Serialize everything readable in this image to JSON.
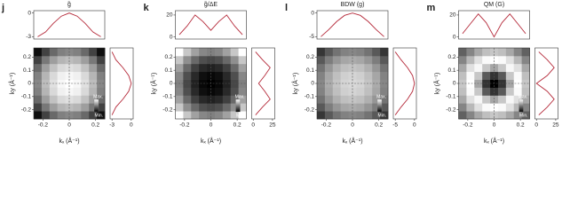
{
  "chart_data": [
    {
      "type": "heatmap",
      "label": "j",
      "title": "g̃",
      "xlabel": "kₓ (Å⁻¹)",
      "ylabel": "ky (Å⁻¹)",
      "x": [
        -0.24,
        -0.18,
        -0.12,
        -0.06,
        0,
        0.06,
        0.12,
        0.18,
        0.24
      ],
      "y": [
        -0.24,
        -0.18,
        -0.12,
        -0.06,
        0,
        0.06,
        0.12,
        0.18,
        0.24
      ],
      "z": [
        [
          0.06,
          0.26,
          0.41,
          0.5,
          0.53,
          0.5,
          0.41,
          0.26,
          0.06
        ],
        [
          0.26,
          0.47,
          0.62,
          0.71,
          0.74,
          0.71,
          0.62,
          0.47,
          0.26
        ],
        [
          0.41,
          0.62,
          0.76,
          0.85,
          0.88,
          0.85,
          0.76,
          0.62,
          0.41
        ],
        [
          0.5,
          0.71,
          0.85,
          0.94,
          0.97,
          0.94,
          0.85,
          0.71,
          0.5
        ],
        [
          0.53,
          0.74,
          0.88,
          0.97,
          1,
          0.97,
          0.88,
          0.74,
          0.53
        ],
        [
          0.5,
          0.71,
          0.85,
          0.94,
          0.97,
          0.94,
          0.85,
          0.71,
          0.5
        ],
        [
          0.41,
          0.62,
          0.76,
          0.85,
          0.88,
          0.85,
          0.76,
          0.62,
          0.41
        ],
        [
          0.26,
          0.47,
          0.62,
          0.71,
          0.74,
          0.71,
          0.62,
          0.47,
          0.26
        ],
        [
          0.06,
          0.26,
          0.41,
          0.5,
          0.53,
          0.5,
          0.41,
          0.26,
          0.06
        ]
      ],
      "xlim": [
        -0.27,
        0.27
      ],
      "ylim": [
        -0.27,
        0.27
      ],
      "xticks": [
        -0.2,
        0,
        0.2
      ],
      "yticks": [
        0.2,
        0.1,
        0,
        -0.1,
        -0.2
      ],
      "colorbar": {
        "max": "Max.",
        "min": "Min."
      },
      "top": {
        "values": [
          -3,
          -2.4,
          -1.3,
          -0.4,
          0,
          -0.4,
          -1.3,
          -2.4,
          -3
        ],
        "ylim": [
          -3.3,
          0.3
        ],
        "yticks": [
          0,
          -3
        ],
        "color": "#b52a3a"
      },
      "side": {
        "values": [
          -3,
          -2.4,
          -1.3,
          -0.4,
          0,
          -0.4,
          -1.3,
          -2.4,
          -3
        ],
        "xlim": [
          -3.3,
          0.3
        ],
        "xticks": [
          -3,
          0
        ],
        "color": "#b52a3a"
      }
    },
    {
      "type": "heatmap",
      "label": "k",
      "title": "g̃/ΔE",
      "xlabel": "kₓ (Å⁻¹)",
      "ylabel": "ky (Å⁻¹)",
      "x": [
        -0.24,
        -0.18,
        -0.12,
        -0.06,
        0,
        0.06,
        0.12,
        0.18,
        0.24
      ],
      "y": [
        -0.24,
        -0.18,
        -0.12,
        -0.06,
        0,
        0.06,
        0.12,
        0.18,
        0.24
      ],
      "z": [
        [
          1,
          0.78,
          0.63,
          0.53,
          0.5,
          0.53,
          0.63,
          0.78,
          1
        ],
        [
          0.78,
          0.56,
          0.41,
          0.31,
          0.28,
          0.31,
          0.41,
          0.56,
          0.78
        ],
        [
          0.63,
          0.41,
          0.25,
          0.16,
          0.13,
          0.16,
          0.25,
          0.41,
          0.63
        ],
        [
          0.53,
          0.31,
          0.16,
          0.06,
          0.03,
          0.06,
          0.16,
          0.31,
          0.53
        ],
        [
          0.5,
          0.28,
          0.13,
          0.03,
          0,
          0.03,
          0.13,
          0.28,
          0.5
        ],
        [
          0.53,
          0.31,
          0.16,
          0.06,
          0.03,
          0.06,
          0.16,
          0.31,
          0.53
        ],
        [
          0.63,
          0.41,
          0.25,
          0.16,
          0.13,
          0.16,
          0.25,
          0.41,
          0.63
        ],
        [
          0.78,
          0.56,
          0.41,
          0.31,
          0.28,
          0.31,
          0.41,
          0.56,
          0.78
        ],
        [
          1,
          0.78,
          0.63,
          0.53,
          0.5,
          0.53,
          0.63,
          0.78,
          1
        ]
      ],
      "xlim": [
        -0.27,
        0.27
      ],
      "ylim": [
        -0.27,
        0.27
      ],
      "xticks": [
        -0.2,
        0,
        0.2
      ],
      "yticks": [
        0.2,
        0.1,
        0,
        -0.1,
        -0.2
      ],
      "colorbar": {
        "max": "Max.",
        "min": "Min."
      },
      "top": {
        "values": [
          2,
          10,
          20,
          14,
          6,
          14,
          20,
          10,
          2
        ],
        "ylim": [
          -2,
          24
        ],
        "yticks": [
          20,
          0
        ],
        "color": "#b52a3a"
      },
      "side": {
        "values": [
          3,
          12,
          22,
          15,
          7,
          15,
          22,
          12,
          3
        ],
        "xlim": [
          -2,
          28
        ],
        "xticks": [
          0,
          25
        ],
        "color": "#b52a3a"
      }
    },
    {
      "type": "heatmap",
      "label": "l",
      "title": "BDW (g)",
      "xlabel": "kₓ (Å⁻¹)",
      "ylabel": "ky (Å⁻¹)",
      "x": [
        -0.24,
        -0.18,
        -0.12,
        -0.06,
        0,
        0.06,
        0.12,
        0.18,
        0.24
      ],
      "y": [
        -0.24,
        -0.18,
        -0.12,
        -0.06,
        0,
        0.06,
        0.12,
        0.18,
        0.24
      ],
      "z": [
        [
          0.21,
          0.35,
          0.45,
          0.51,
          0.53,
          0.51,
          0.45,
          0.35,
          0.21
        ],
        [
          0.35,
          0.49,
          0.59,
          0.65,
          0.67,
          0.65,
          0.59,
          0.49,
          0.35
        ],
        [
          0.45,
          0.59,
          0.69,
          0.75,
          0.77,
          0.75,
          0.69,
          0.59,
          0.45
        ],
        [
          0.51,
          0.65,
          0.75,
          0.81,
          0.83,
          0.81,
          0.75,
          0.65,
          0.51
        ],
        [
          0.53,
          0.67,
          0.77,
          0.83,
          0.85,
          0.83,
          0.77,
          0.67,
          0.53
        ],
        [
          0.51,
          0.65,
          0.75,
          0.81,
          0.83,
          0.81,
          0.75,
          0.65,
          0.51
        ],
        [
          0.45,
          0.59,
          0.69,
          0.75,
          0.77,
          0.75,
          0.69,
          0.59,
          0.45
        ],
        [
          0.35,
          0.49,
          0.59,
          0.65,
          0.67,
          0.65,
          0.59,
          0.49,
          0.35
        ],
        [
          0.21,
          0.35,
          0.45,
          0.51,
          0.53,
          0.51,
          0.45,
          0.35,
          0.21
        ]
      ],
      "xlim": [
        -0.27,
        0.27
      ],
      "ylim": [
        -0.27,
        0.27
      ],
      "xticks": [
        -0.2,
        0,
        0.2
      ],
      "yticks": [
        0.2,
        0.1,
        0,
        -0.1,
        -0.2
      ],
      "colorbar": {
        "max": "Max.",
        "min": "Min."
      },
      "top": {
        "values": [
          -5,
          -3.5,
          -1.8,
          -0.5,
          0,
          -0.5,
          -1.8,
          -3.5,
          -5
        ],
        "ylim": [
          -5.5,
          0.5
        ],
        "yticks": [
          0,
          -5
        ],
        "color": "#b52a3a"
      },
      "side": {
        "values": [
          -5,
          -3.5,
          -1.8,
          -0.5,
          0,
          -0.5,
          -1.8,
          -3.5,
          -5
        ],
        "xlim": [
          -5.5,
          0.5
        ],
        "xticks": [
          -5,
          0
        ],
        "color": "#b52a3a"
      }
    },
    {
      "type": "heatmap",
      "label": "m",
      "title": "QM (G)",
      "xlabel": "kₓ (Å⁻¹)",
      "ylabel": "ky (Å⁻¹)",
      "x": [
        -0.24,
        -0.18,
        -0.12,
        -0.06,
        0,
        0.06,
        0.12,
        0.18,
        0.24
      ],
      "y": [
        -0.24,
        -0.18,
        -0.12,
        -0.06,
        0,
        0.06,
        0.12,
        0.18,
        0.24
      ],
      "z": [
        [
          0.38,
          0.52,
          0.66,
          0.75,
          0.78,
          0.75,
          0.66,
          0.52,
          0.38
        ],
        [
          0.52,
          0.72,
          0.88,
          0.98,
          1,
          0.98,
          0.88,
          0.72,
          0.52
        ],
        [
          0.66,
          0.88,
          0.97,
          0.78,
          0.65,
          0.78,
          0.97,
          0.88,
          0.66
        ],
        [
          0.75,
          0.98,
          0.78,
          0.35,
          0.2,
          0.35,
          0.78,
          0.98,
          0.75
        ],
        [
          0.78,
          1,
          0.65,
          0.2,
          0,
          0.2,
          0.65,
          1,
          0.78
        ],
        [
          0.75,
          0.98,
          0.78,
          0.35,
          0.2,
          0.35,
          0.78,
          0.98,
          0.75
        ],
        [
          0.66,
          0.88,
          0.97,
          0.78,
          0.65,
          0.78,
          0.97,
          0.88,
          0.66
        ],
        [
          0.52,
          0.72,
          0.88,
          0.98,
          1,
          0.98,
          0.88,
          0.72,
          0.52
        ],
        [
          0.38,
          0.52,
          0.66,
          0.75,
          0.78,
          0.75,
          0.66,
          0.52,
          0.38
        ]
      ],
      "xlim": [
        -0.27,
        0.27
      ],
      "ylim": [
        -0.27,
        0.27
      ],
      "xticks": [
        -0.2,
        0,
        0.2
      ],
      "yticks": [
        0.2,
        0.1,
        0,
        -0.1,
        -0.2
      ],
      "colorbar": {
        "max": "Max.",
        "min": "Min."
      },
      "top": {
        "values": [
          3,
          12,
          21,
          13,
          0,
          13,
          21,
          12,
          3
        ],
        "ylim": [
          -2,
          24
        ],
        "yticks": [
          20,
          0
        ],
        "color": "#b52a3a"
      },
      "side": {
        "values": [
          3,
          14,
          23,
          14,
          0,
          14,
          23,
          14,
          3
        ],
        "xlim": [
          -2,
          28
        ],
        "xticks": [
          0,
          25
        ],
        "color": "#b52a3a"
      }
    }
  ]
}
